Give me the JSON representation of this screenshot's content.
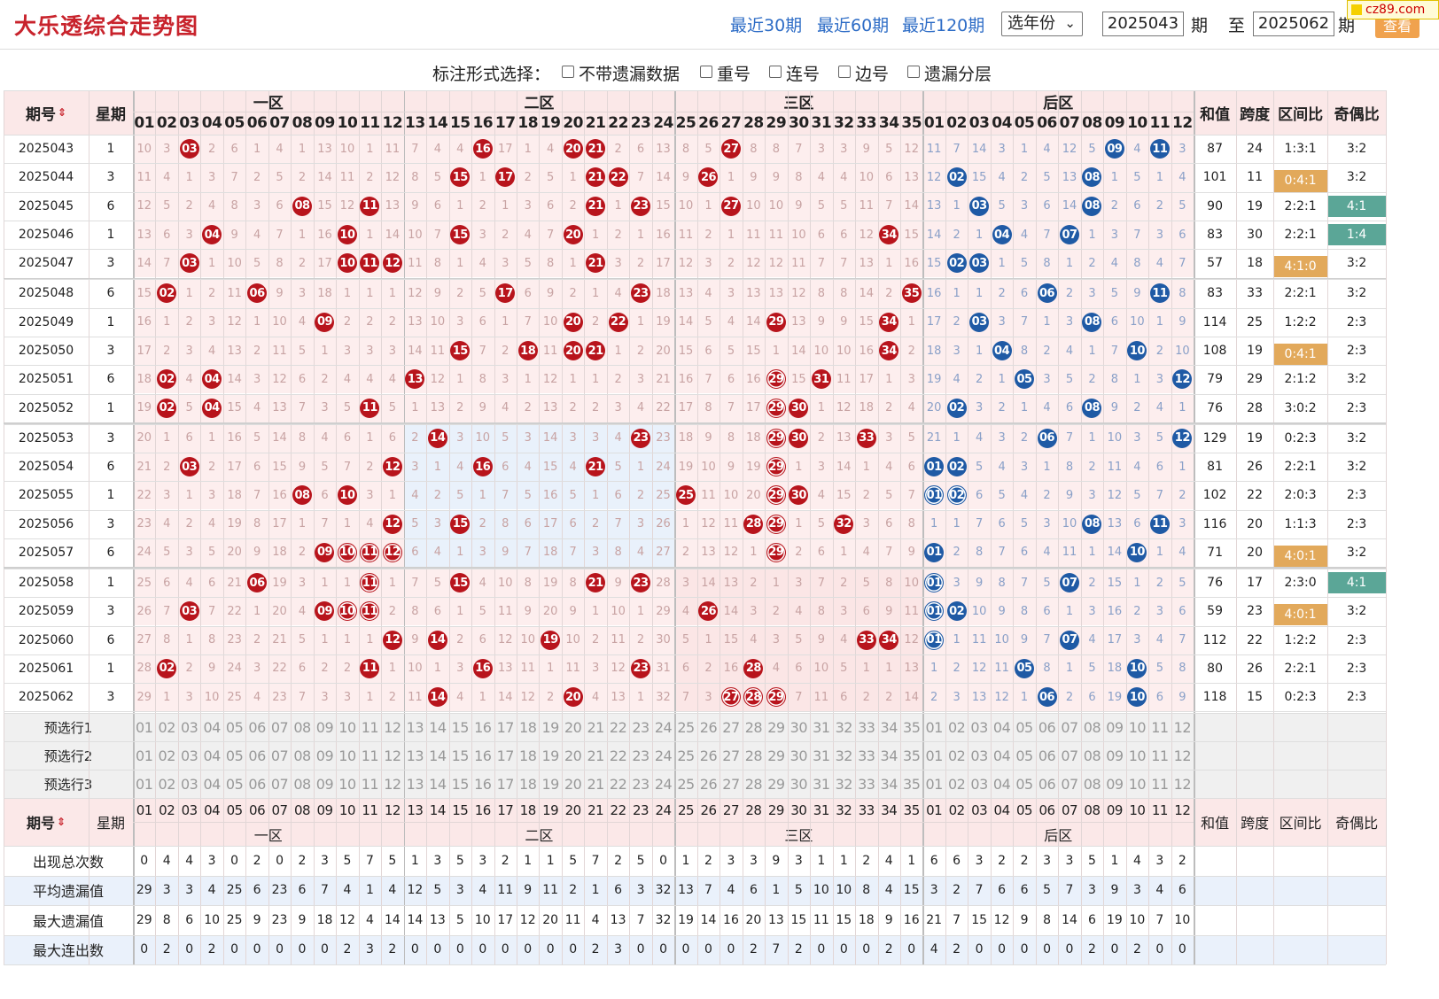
{
  "header": {
    "title": "大乐透综合走势图",
    "links": [
      "最近30期",
      "最近60期",
      "最近120期"
    ],
    "year_select": "选年份",
    "from_period": "2025043",
    "period_label": "期",
    "to_label": "至",
    "to_period": "2025062",
    "query_button": "查看",
    "logo": "cz89.com"
  },
  "options": {
    "label": "标注形式选择：",
    "items": [
      "不带遗漏数据",
      "重号",
      "连号",
      "边号",
      "遗漏分层"
    ]
  },
  "table": {
    "headers": {
      "period": "期号",
      "weekday": "星期",
      "zones": [
        "一区",
        "二区",
        "三区",
        "后区"
      ],
      "front_numbers": [
        "01",
        "02",
        "03",
        "04",
        "05",
        "06",
        "07",
        "08",
        "09",
        "10",
        "11",
        "12",
        "13",
        "14",
        "15",
        "16",
        "17",
        "18",
        "19",
        "20",
        "21",
        "22",
        "23",
        "24",
        "25",
        "26",
        "27",
        "28",
        "29",
        "30",
        "31",
        "32",
        "33",
        "34",
        "35"
      ],
      "back_numbers": [
        "01",
        "02",
        "03",
        "04",
        "05",
        "06",
        "07",
        "08",
        "09",
        "10",
        "11",
        "12"
      ],
      "stats": [
        "和值",
        "跨度",
        "区间比",
        "奇偶比"
      ]
    },
    "colors": {
      "zone_bg": "#fbe8e8",
      "zone2_highlight": "#e9f1fb",
      "zone3_highlight": "#fbe6e6",
      "red_ball": "#b8141c",
      "blue_ball": "#1f5aa5",
      "ratio_orange": "#e2a95b",
      "ratio_teal": "#5ba697"
    },
    "rows": [
      {
        "period": "2025043",
        "week": "1",
        "front": "10 3 [03] 2 6 1 4 1 13 10 1 11 7 4 4 [16] 17 1 4 [20] [21] 2 6 13 8 5 [27] 8 8 7 3 3 9 5 12",
        "back": "11 7 14 3 1 4 12 5 [09] 4 [11] 3",
        "sum": "87",
        "span": "24",
        "zone": "1:3:1",
        "zone_hl": "",
        "oe": "3:2",
        "oe_hl": ""
      },
      {
        "period": "2025044",
        "week": "3",
        "front": "11 4 1 3 7 2 5 2 14 11 2 12 8 5 [15] 1 [17] 2 5 1 [21] [22] 7 14 9 [26] 1 9 9 8 4 4 10 6 13",
        "back": "12 [02] 15 4 2 5 13 [08] 1 5 1 4",
        "sum": "101",
        "span": "11",
        "zone": "0:4:1",
        "zone_hl": "o",
        "oe": "3:2",
        "oe_hl": ""
      },
      {
        "period": "2025045",
        "week": "6",
        "front": "12 5 2 4 8 3 6 [08] 15 12 [11] 13 9 6 1 2 1 3 6 2 [21] 1 [23] 15 10 1 [27] 10 10 9 5 5 11 7 14",
        "back": "13 1 [03] 5 3 6 14 [08] 2 6 2 5",
        "sum": "90",
        "span": "19",
        "zone": "2:2:1",
        "zone_hl": "",
        "oe": "4:1",
        "oe_hl": "t"
      },
      {
        "period": "2025046",
        "week": "1",
        "front": "13 6 3 [04] 9 4 7 1 16 [10] 1 14 10 7 [15] 3 2 4 7 [20] 1 2 1 16 11 2 1 11 11 10 6 6 12 [34] 15",
        "back": "14 2 1 [04] 4 7 [07] 1 3 7 3 6",
        "sum": "83",
        "span": "30",
        "zone": "2:2:1",
        "zone_hl": "",
        "oe": "1:4",
        "oe_hl": "t"
      },
      {
        "period": "2025047",
        "week": "3",
        "front": "14 7 [03] 1 10 5 8 2 17 [10] [11] [12] 11 8 1 4 3 5 8 1 [21] 3 2 17 12 3 2 12 12 11 7 7 13 1 16",
        "back": "15 [02] [03] 1 5 8 1 2 4 8 4 7",
        "sum": "57",
        "span": "18",
        "zone": "4:1:0",
        "zone_hl": "o",
        "oe": "3:2",
        "oe_hl": ""
      },
      {
        "period": "2025048",
        "week": "6",
        "front": "15 [02] 1 2 11 [06] 9 3 18 1 1 1 12 9 2 5 [17] 6 9 2 1 4 [23] 18 13 4 3 13 13 12 8 8 14 2 [35]",
        "back": "16 1 1 2 6 [06] 2 3 5 9 [11] 8",
        "sum": "83",
        "span": "33",
        "zone": "2:2:1",
        "zone_hl": "",
        "oe": "3:2",
        "oe_hl": ""
      },
      {
        "period": "2025049",
        "week": "1",
        "front": "16 1 2 3 12 1 10 4 [09] 2 2 2 13 10 3 6 1 7 10 [20] 2 [22] 1 19 14 5 4 14 [29] 13 9 9 15 [34] 1",
        "back": "17 2 [03] 3 7 1 3 [08] 6 10 1 9",
        "sum": "114",
        "span": "25",
        "zone": "1:2:2",
        "zone_hl": "",
        "oe": "2:3",
        "oe_hl": ""
      },
      {
        "period": "2025050",
        "week": "3",
        "front": "17 2 3 4 13 2 11 5 1 3 3 3 14 11 [15] 7 2 [18] 11 [20] [21] 1 2 20 15 6 5 15 1 14 10 10 16 [34] 2",
        "back": "18 3 1 [04] 8 2 4 1 7 [10] 2 10",
        "sum": "108",
        "span": "19",
        "zone": "0:4:1",
        "zone_hl": "o",
        "oe": "2:3",
        "oe_hl": ""
      },
      {
        "period": "2025051",
        "week": "6",
        "front": "18 [02] 4 [04] 14 3 12 6 2 4 4 4 [13] 12 1 8 3 1 12 1 1 2 3 21 16 7 6 16 (29) 15 [31] 11 17 1 3",
        "back": "19 4 2 1 [05] 3 5 2 8 1 3 [12]",
        "sum": "79",
        "span": "29",
        "zone": "2:1:2",
        "zone_hl": "",
        "oe": "3:2",
        "oe_hl": ""
      },
      {
        "period": "2025052",
        "week": "1",
        "front": "19 [02] 5 [04] 15 4 13 7 3 5 [11] 5 1 13 2 9 4 2 13 2 2 3 4 22 17 8 7 17 (29) [30] 1 12 18 2 4",
        "back": "20 [02] 3 2 1 4 6 [08] 9 2 4 1",
        "sum": "76",
        "span": "28",
        "zone": "3:0:2",
        "zone_hl": "",
        "oe": "2:3",
        "oe_hl": ""
      },
      {
        "period": "2025053",
        "week": "3",
        "front": "20 1 6 1 16 5 14 8 4 6 1 6 2 [14] 3 10 5 3 14 3 3 4 [23] 23 18 9 8 18 (29) [30] 2 13 [33] 3 5",
        "back": "21 1 4 3 2 [06] 7 1 10 3 5 [12]",
        "sum": "129",
        "span": "19",
        "zone": "0:2:3",
        "zone_hl": "",
        "oe": "3:2",
        "oe_hl": ""
      },
      {
        "period": "2025054",
        "week": "6",
        "front": "21 2 [03] 2 17 6 15 9 5 7 2 [12] 3 1 4 [16] 6 4 15 4 [21] 5 1 24 19 10 9 19 (29) 1 3 14 1 4 6",
        "back": "[01] [02] 5 4 3 1 8 2 11 4 6 1",
        "sum": "81",
        "span": "26",
        "zone": "2:2:1",
        "zone_hl": "",
        "oe": "3:2",
        "oe_hl": ""
      },
      {
        "period": "2025055",
        "week": "1",
        "front": "22 3 1 3 18 7 16 [08] 6 [10] 3 1 4 2 5 1 7 5 16 5 1 6 2 25 [25] 11 10 20 (29) [30] 4 15 2 5 7",
        "back": "(01) (02) 6 5 4 2 9 3 12 5 7 2",
        "sum": "102",
        "span": "22",
        "zone": "2:0:3",
        "zone_hl": "",
        "oe": "2:3",
        "oe_hl": ""
      },
      {
        "period": "2025056",
        "week": "3",
        "front": "23 4 2 4 19 8 17 1 7 1 4 [12] 5 3 [15] 2 8 6 17 6 2 7 3 26 1 12 11 [28] (29) 1 5 [32] 3 6 8",
        "back": "1 1 7 6 5 3 10 [08] 13 6 [11] 3",
        "sum": "116",
        "span": "20",
        "zone": "1:1:3",
        "zone_hl": "",
        "oe": "2:3",
        "oe_hl": ""
      },
      {
        "period": "2025057",
        "week": "6",
        "front": "24 5 3 5 20 9 18 2 [09] (10) (11) (12) 6 4 1 3 9 7 18 7 3 8 4 27 2 13 12 1 (29) 2 6 1 4 7 9",
        "back": "[01] 2 8 7 6 4 11 1 14 [10] 1 4",
        "sum": "71",
        "span": "20",
        "zone": "4:0:1",
        "zone_hl": "o",
        "oe": "3:2",
        "oe_hl": ""
      },
      {
        "period": "2025058",
        "week": "1",
        "front": "25 6 4 6 21 [06] 19 3 1 1 (11) 1 7 5 [15] 4 10 8 19 8 [21] 9 [23] 28 3 14 13 2 1 3 7 2 5 8 10",
        "back": "(01) 3 9 8 7 5 [07] 2 15 1 2 5",
        "sum": "76",
        "span": "17",
        "zone": "2:3:0",
        "zone_hl": "",
        "oe": "4:1",
        "oe_hl": "t"
      },
      {
        "period": "2025059",
        "week": "3",
        "front": "26 7 [03] 7 22 1 20 4 [09] (10) (11) 2 8 6 1 5 11 9 20 9 1 10 1 29 4 [26] 14 3 2 4 8 3 6 9 11",
        "back": "(01) [02] 10 9 8 6 1 3 16 2 3 6",
        "sum": "59",
        "span": "23",
        "zone": "4:0:1",
        "zone_hl": "o",
        "oe": "3:2",
        "oe_hl": ""
      },
      {
        "period": "2025060",
        "week": "6",
        "front": "27 8 1 8 23 2 21 5 1 1 1 [12] 9 [14] 2 6 12 10 [19] 10 2 11 2 30 5 1 15 4 3 5 9 4 [33] [34] 12",
        "back": "(01) 1 11 10 9 7 [07] 4 17 3 4 7",
        "sum": "112",
        "span": "22",
        "zone": "1:2:2",
        "zone_hl": "",
        "oe": "2:3",
        "oe_hl": ""
      },
      {
        "period": "2025061",
        "week": "1",
        "front": "28 [02] 2 9 24 3 22 6 2 2 [11] 1 10 1 3 [16] 13 11 1 11 3 12 [23] 31 6 2 16 [28] 4 6 10 5 1 1 13",
        "back": "1 2 12 11 [05] 8 1 5 18 [10] 5 8",
        "sum": "80",
        "span": "26",
        "zone": "2:2:1",
        "zone_hl": "",
        "oe": "2:3",
        "oe_hl": ""
      },
      {
        "period": "2025062",
        "week": "3",
        "front": "29 1 3 10 25 4 23 7 3 3 1 2 11 [14] 4 1 14 12 2 [20] 4 13 1 32 7 3 (27) (28) (29) 7 11 6 2 2 14",
        "back": "2 3 13 12 1 [06] 2 6 19 [10] 6 9",
        "sum": "118",
        "span": "15",
        "zone": "0:2:3",
        "zone_hl": "",
        "oe": "2:3",
        "oe_hl": ""
      }
    ],
    "preselect_rows": [
      "预选行1",
      "预选行2",
      "预选行3"
    ],
    "stat_rows": [
      {
        "label": "出现总次数",
        "front": "0 4 4 3 0 2 0 2 3 5 7 5 1 3 5 3 2 1 1 5 7 2 5 0 1 2 3 3 9 3 1 1 2 4 1",
        "back": "6 6 3 2 2 3 3 5 1 4 3 2"
      },
      {
        "label": "平均遗漏值",
        "front": "29 3 3 4 25 6 23 6 7 4 1 4 12 5 3 4 11 9 11 2 1 6 3 32 13 7 4 6 1 5 10 10 8 4 15",
        "back": "3 2 7 6 6 5 7 3 9 3 4 6"
      },
      {
        "label": "最大遗漏值",
        "front": "29 8 6 10 25 9 23 9 18 12 4 14 14 13 5 10 17 12 20 11 4 13 7 32 19 14 16 20 13 15 11 15 18 9 16",
        "back": "21 7 15 12 9 8 14 6 19 10 7 10"
      },
      {
        "label": "最大连出数",
        "front": "0 2 0 2 0 0 0 0 0 2 3 2 0 0 0 0 0 0 0 0 2 3 0 0 0 0 0 2 7 2 0 0 0 2 0",
        "back": "4 2 0 0 0 0 0 2 0 2 0 0"
      }
    ]
  }
}
